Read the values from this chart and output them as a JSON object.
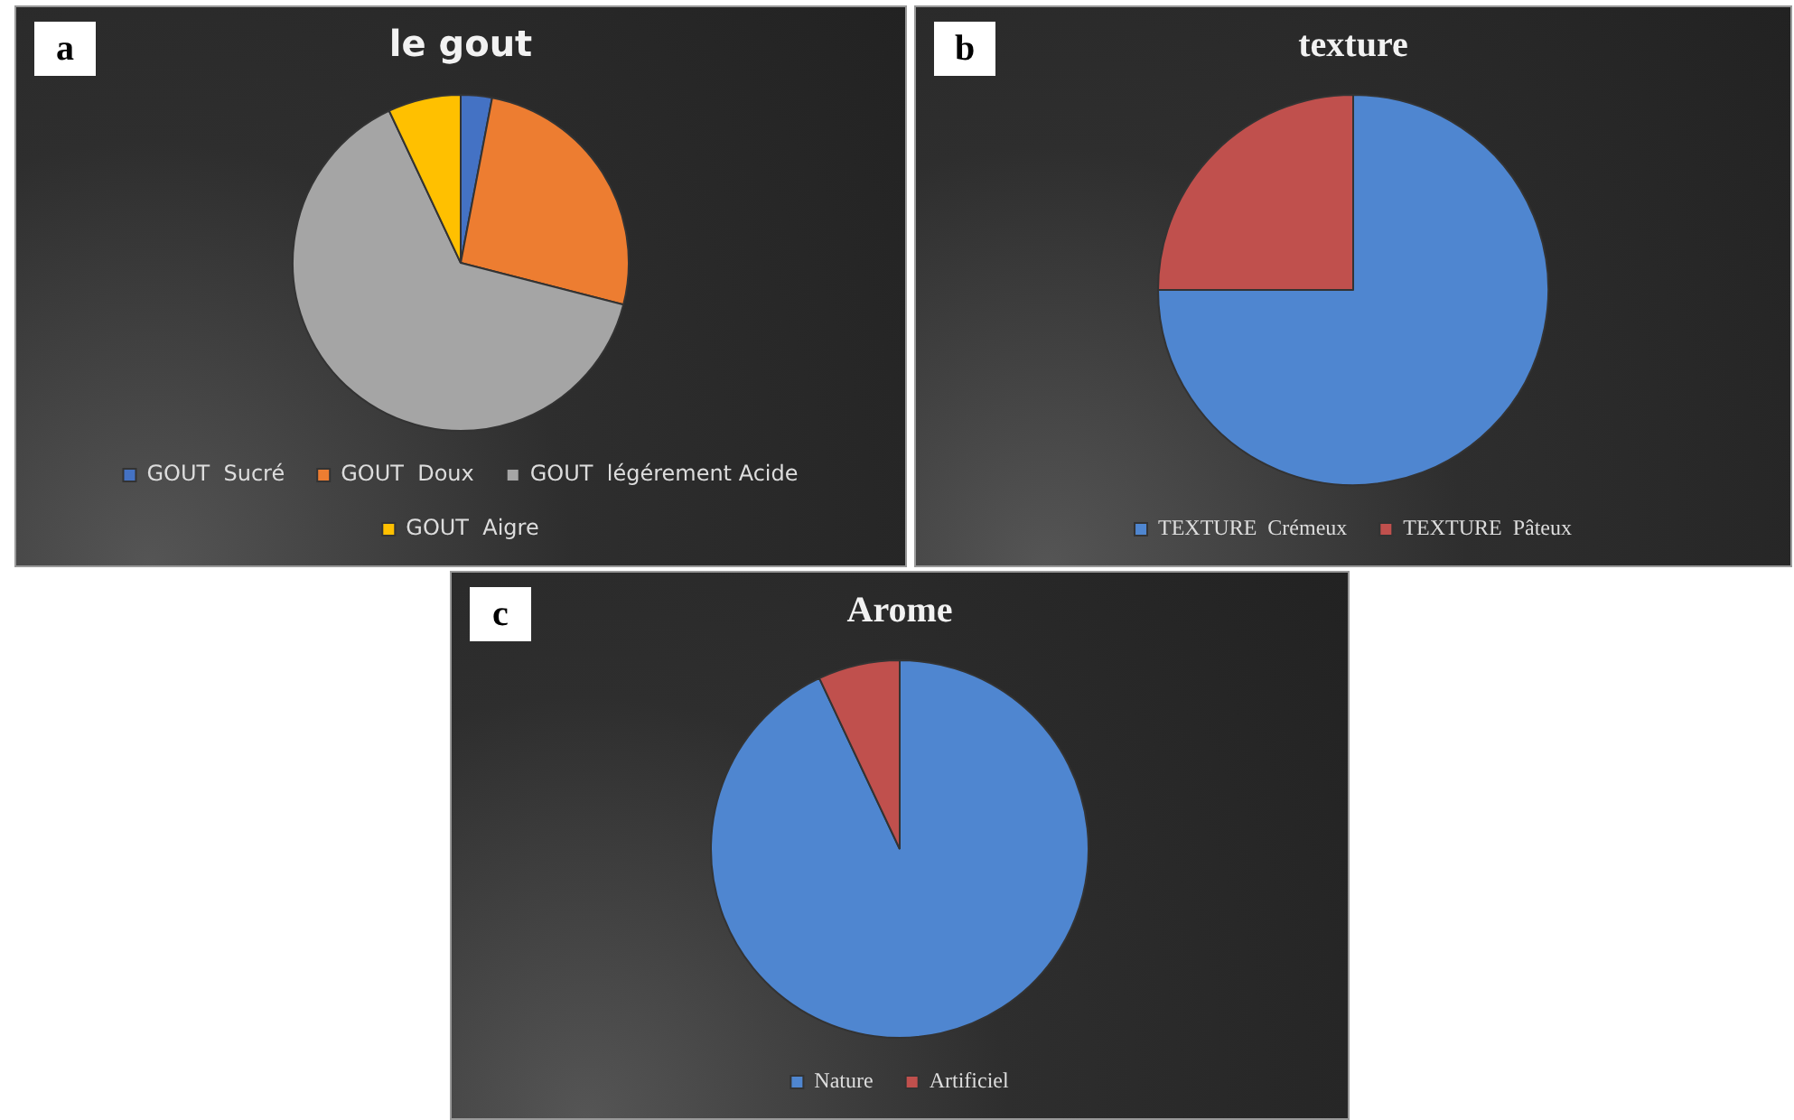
{
  "chart_data": [
    {
      "type": "pie",
      "title": "le gout",
      "categories": [
        "GOUT  Sucré",
        "GOUT  Doux",
        "GOUT  légérement Acide",
        "GOUT  Aigre"
      ],
      "values": [
        3,
        26,
        64,
        7
      ],
      "colors": [
        "#4472c4",
        "#ed7d31",
        "#a5a5a5",
        "#ffc000"
      ],
      "legend": "bottom",
      "annotations": [
        "a"
      ]
    },
    {
      "type": "pie",
      "title": "texture",
      "categories": [
        "TEXTURE  Crémeux",
        "TEXTURE  Pâteux"
      ],
      "values": [
        75,
        25
      ],
      "colors": [
        "#4f86d0",
        "#c0504d"
      ],
      "legend": "bottom",
      "annotations": [
        "b"
      ]
    },
    {
      "type": "pie",
      "title": "Arome",
      "categories": [
        "Nature",
        "Artificiel"
      ],
      "values": [
        93,
        7
      ],
      "colors": [
        "#4f86d0",
        "#c0504d"
      ],
      "legend": "bottom",
      "annotations": [
        "c"
      ]
    }
  ]
}
